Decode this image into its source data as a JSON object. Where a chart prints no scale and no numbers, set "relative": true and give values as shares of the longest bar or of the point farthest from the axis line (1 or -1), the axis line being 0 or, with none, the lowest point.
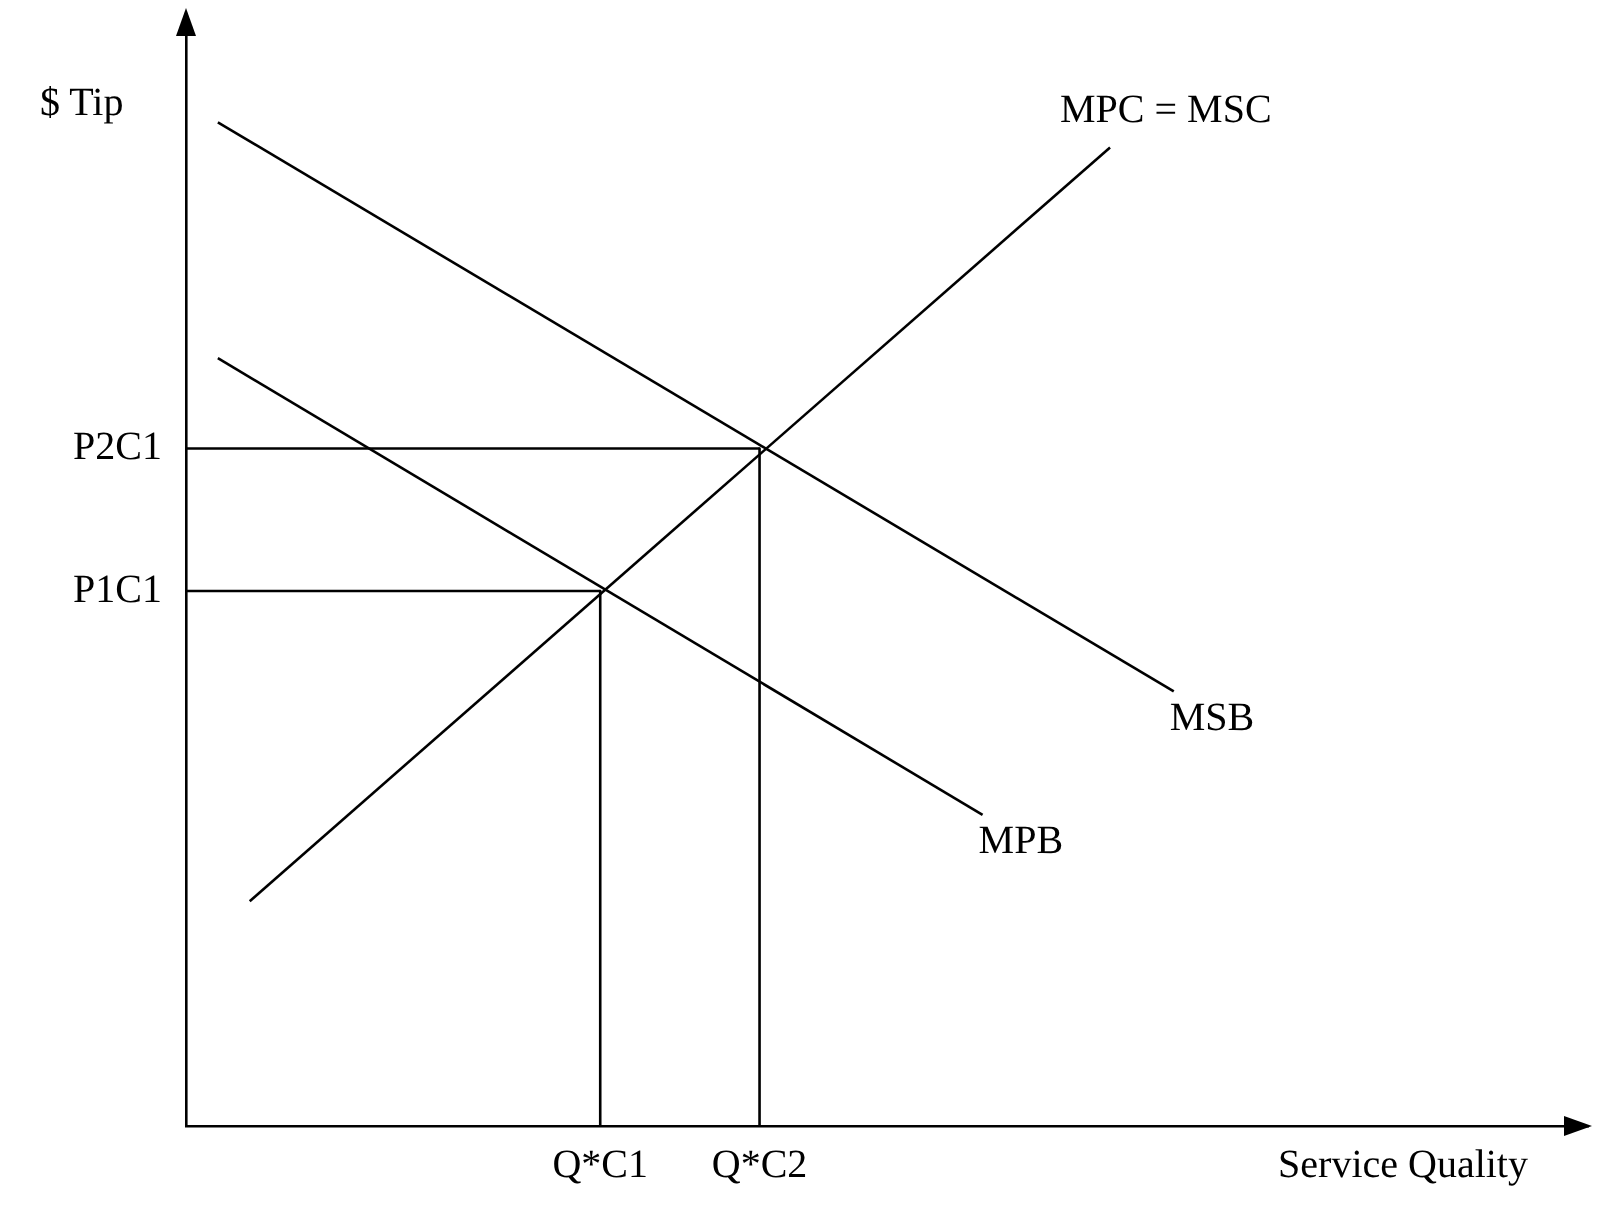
{
  "chart_data": {
    "type": "line",
    "relative": true,
    "tick_labels": "x",
    "xlabel": "Service Quality",
    "ylabel": "$ Tip",
    "marker": "none",
    "line_style": "solid",
    "legend": false,
    "categories": [
      null,
      null,
      null,
      null,
      null,
      null,
      null,
      null,
      null,
      null,
      null,
      null,
      null,
      "Q*C1",
      null,
      null,
      null,
      null,
      "Q*C2",
      null,
      null,
      null,
      null,
      null,
      null,
      null,
      null,
      null,
      null,
      null,
      null,
      null,
      null,
      null,
      null,
      null,
      null,
      null,
      null,
      null,
      null,
      null,
      null,
      null,
      null
    ],
    "series": [
      {
        "name": "MSB",
        "color": "#000000",
        "values": [
          null,
          1.0,
          null,
          null,
          null,
          null,
          null,
          null,
          null,
          null,
          null,
          null,
          null,
          null,
          null,
          null,
          null,
          null,
          null,
          null,
          null,
          null,
          null,
          null,
          null,
          null,
          null,
          null,
          null,
          null,
          null,
          0.433,
          null,
          null,
          null,
          null,
          null,
          null,
          null,
          null,
          null,
          null,
          null,
          null,
          null
        ]
      },
      {
        "name": "MPB",
        "color": "#000000",
        "values": [
          null,
          0.765,
          null,
          null,
          null,
          null,
          null,
          null,
          null,
          null,
          null,
          null,
          null,
          null,
          null,
          null,
          null,
          null,
          null,
          null,
          null,
          null,
          null,
          null,
          null,
          0.31,
          null,
          null,
          null,
          null,
          null,
          null,
          null,
          null,
          null,
          null,
          null,
          null,
          null,
          null,
          null,
          null,
          null,
          null,
          null
        ]
      },
      {
        "name": "MPC = MSC",
        "color": "#000000",
        "values": [
          null,
          null,
          0.224,
          null,
          null,
          null,
          null,
          null,
          null,
          null,
          null,
          null,
          null,
          null,
          null,
          null,
          null,
          null,
          null,
          null,
          null,
          null,
          null,
          null,
          null,
          null,
          null,
          null,
          null,
          0.975,
          null,
          null,
          null,
          null,
          null,
          null,
          null,
          null,
          null,
          null,
          null,
          null,
          null,
          null,
          null
        ]
      },
      {
        "color": "#000000",
        "values": [
          0.675,
          null,
          null,
          null,
          null,
          null,
          null,
          null,
          null,
          null,
          null,
          null,
          null,
          null,
          null,
          null,
          null,
          null,
          0.675,
          null,
          null,
          null,
          null,
          null,
          null,
          null,
          null,
          null,
          null,
          null,
          null,
          null,
          null,
          null,
          null,
          null,
          null,
          null,
          null,
          null,
          null,
          null,
          null,
          null,
          null
        ]
      },
      {
        "color": "#000000",
        "values": [
          0.533,
          null,
          null,
          null,
          null,
          null,
          null,
          null,
          null,
          null,
          null,
          null,
          null,
          0.533,
          null,
          null,
          null,
          null,
          null,
          null,
          null,
          null,
          null,
          null,
          null,
          null,
          null,
          null,
          null,
          null,
          null,
          null,
          null,
          null,
          null,
          null,
          null,
          null,
          null,
          null,
          null,
          null,
          null,
          null,
          null
        ]
      },
      {
        "color": "#000000",
        "x": [
          "Q*C2",
          "Q*C2"
        ],
        "values": [
          0.675,
          0
        ]
      },
      {
        "color": "#000000",
        "x": [
          "Q*C1",
          "Q*C1"
        ],
        "values": [
          0.533,
          0
        ]
      }
    ],
    "annotations": [
      "P2C1",
      "P1C1"
    ]
  }
}
